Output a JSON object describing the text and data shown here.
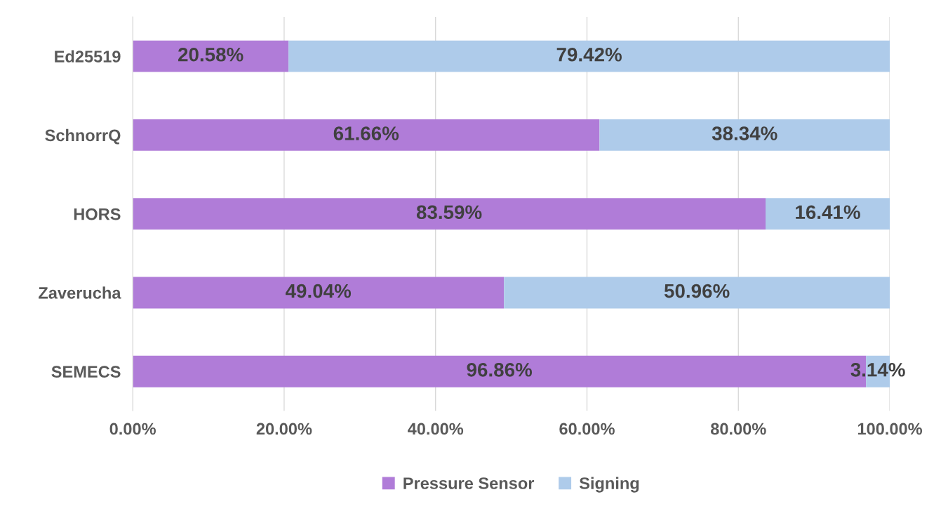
{
  "chart_data": {
    "type": "bar",
    "orientation": "horizontal",
    "stacked": true,
    "categories": [
      "Ed25519",
      "SchnorrQ",
      "HORS",
      "Zaverucha",
      "SEMECS"
    ],
    "series": [
      {
        "name": "Pressure Sensor",
        "color": "#b07cd8",
        "values": [
          20.58,
          61.66,
          83.59,
          49.04,
          96.86
        ],
        "value_labels": [
          "20.58%",
          "61.66%",
          "83.59%",
          "49.04%",
          "96.86%"
        ]
      },
      {
        "name": "Signing",
        "color": "#aecbea",
        "values": [
          79.42,
          38.34,
          16.41,
          50.96,
          3.14
        ],
        "value_labels": [
          "79.42%",
          "38.34%",
          "16.41%",
          "50.96%",
          "3.14%"
        ]
      }
    ],
    "xlim": [
      0,
      100
    ],
    "xticks": [
      {
        "value": 0,
        "label": "0.00%"
      },
      {
        "value": 20,
        "label": "20.00%"
      },
      {
        "value": 40,
        "label": "40.00%"
      },
      {
        "value": 60,
        "label": "60.00%"
      },
      {
        "value": 80,
        "label": "80.00%"
      },
      {
        "value": 100,
        "label": "100.00%"
      }
    ],
    "grid": "x",
    "legend": "bottom"
  }
}
